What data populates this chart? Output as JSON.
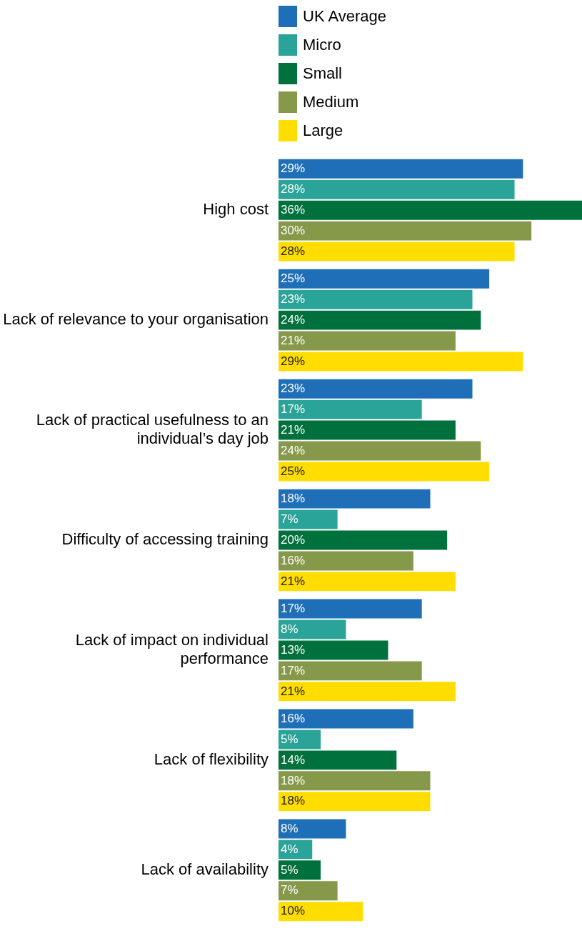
{
  "chart_data": {
    "type": "bar",
    "orientation": "horizontal",
    "legend": "top",
    "tick_labels": "y",
    "grid": false,
    "categories": [
      "High cost",
      "Lack of relevance to your organisation",
      "Lack of practical usefulness to an individual’s day job",
      "Difficulty of accessing training",
      "Lack of impact on individual performance",
      "Lack of flexibility",
      "Lack of availability"
    ],
    "series": [
      {
        "name": "UK Average",
        "color": "#1f6fb8",
        "values": [
          29,
          25,
          23,
          18,
          17,
          16,
          8
        ],
        "value_labels": [
          "29%",
          "25%",
          "23%",
          "18%",
          "17%",
          "16%",
          "8%"
        ]
      },
      {
        "name": "Micro",
        "color": "#2aa398",
        "values": [
          28,
          23,
          17,
          7,
          8,
          5,
          4
        ],
        "value_labels": [
          "28%",
          "23%",
          "17%",
          "7%",
          "8%",
          "5%",
          "4%"
        ]
      },
      {
        "name": "Small",
        "color": "#00703c",
        "values": [
          36,
          24,
          21,
          20,
          13,
          14,
          5
        ],
        "value_labels": [
          "36%",
          "24%",
          "21%",
          "20%",
          "13%",
          "14%",
          "5%"
        ]
      },
      {
        "name": "Medium",
        "color": "#86994a",
        "values": [
          30,
          21,
          24,
          16,
          17,
          18,
          7
        ],
        "value_labels": [
          "30%",
          "21%",
          "24%",
          "16%",
          "17%",
          "18%",
          "7%"
        ]
      },
      {
        "name": "Large",
        "color": "#ffdd00",
        "values": [
          28,
          29,
          25,
          21,
          21,
          18,
          10
        ],
        "value_labels": [
          "28%",
          "29%",
          "25%",
          "21%",
          "21%",
          "18%",
          "10%"
        ]
      }
    ]
  }
}
